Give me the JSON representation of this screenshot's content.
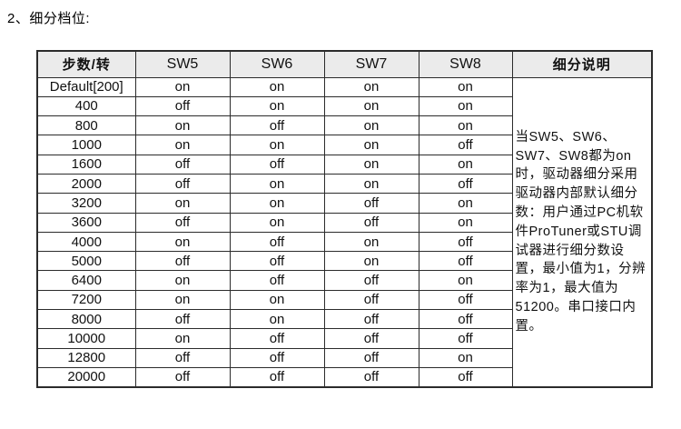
{
  "title": "2、细分档位:",
  "table": {
    "headers": [
      "步数/转",
      "SW5",
      "SW6",
      "SW7",
      "SW8",
      "细分说明"
    ],
    "rows": [
      [
        "Default[200]",
        "on",
        "on",
        "on",
        "on"
      ],
      [
        "400",
        "off",
        "on",
        "on",
        "on"
      ],
      [
        "800",
        "on",
        "off",
        "on",
        "on"
      ],
      [
        "1000",
        "on",
        "on",
        "on",
        "off"
      ],
      [
        "1600",
        "off",
        "off",
        "on",
        "on"
      ],
      [
        "2000",
        "off",
        "on",
        "on",
        "off"
      ],
      [
        "3200",
        "on",
        "on",
        "off",
        "on"
      ],
      [
        "3600",
        "off",
        "on",
        "off",
        "on"
      ],
      [
        "4000",
        "on",
        "off",
        "on",
        "off"
      ],
      [
        "5000",
        "off",
        "off",
        "on",
        "off"
      ],
      [
        "6400",
        "on",
        "off",
        "off",
        "on"
      ],
      [
        "7200",
        "on",
        "on",
        "off",
        "off"
      ],
      [
        "8000",
        "off",
        "on",
        "off",
        "off"
      ],
      [
        "10000",
        "on",
        "off",
        "off",
        "off"
      ],
      [
        "12800",
        "off",
        "off",
        "off",
        "on"
      ],
      [
        "20000",
        "off",
        "off",
        "off",
        "off"
      ]
    ],
    "note": "当SW5、SW6、SW7、SW8都为on时，驱动器细分采用驱动器内部默认细分数：用户通过PC机软件ProTuner或STU调试器进行细分数设置，最小值为1，分辨率为1，最大值为51200。串口接口内置。",
    "colors": {
      "header_bg": "#ebebeb",
      "border": "#2b2b2b",
      "text": "#111111",
      "page_bg": "#ffffff"
    }
  }
}
